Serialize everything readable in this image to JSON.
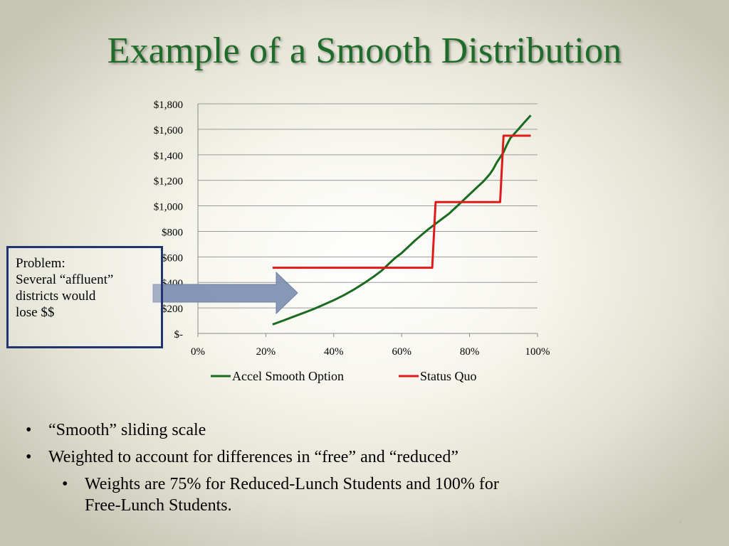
{
  "slide": {
    "title": "Example of a Smooth Distribution",
    "callout": [
      "Problem:",
      "Several “affluent”",
      "districts would",
      "lose $$"
    ],
    "bullets": [
      {
        "level": 1,
        "text": "“Smooth” sliding scale"
      },
      {
        "level": 1,
        "text": "Weighted to account for differences in “free” and “reduced”"
      },
      {
        "level": 2,
        "text": "Weights are 75% for Reduced-Lunch Students and 100% for",
        "text2": "Free-Lunch Students."
      }
    ],
    "bullet_glyph": "•",
    "page_number": "4",
    "arrow_icon": "right-arrow-icon",
    "colors": {
      "title": "#1e6b2a",
      "callout_border": "#1f3470",
      "arrow": "#8192b3"
    }
  },
  "chart_data": {
    "type": "line",
    "title": "",
    "xlabel": "",
    "ylabel": "",
    "xlim": [
      0,
      1
    ],
    "ylim": [
      0,
      1800
    ],
    "xticks": [
      0,
      0.2,
      0.4,
      0.6,
      0.8,
      1.0
    ],
    "xtick_labels": [
      "0%",
      "20%",
      "40%",
      "60%",
      "80%",
      "100%"
    ],
    "yticks": [
      0,
      200,
      400,
      600,
      800,
      1000,
      1200,
      1400,
      1600,
      1800
    ],
    "ytick_labels": [
      "$-",
      "$200",
      "$400",
      "$600",
      "$800",
      "$1,000",
      "$1,200",
      "$1,400",
      "$1,600",
      "$1,800"
    ],
    "grid": "horizontal",
    "legend": "bottom",
    "series": [
      {
        "name": "Accel Smooth Option",
        "color": "#1a6b1f",
        "x": [
          0.22,
          0.25,
          0.28,
          0.31,
          0.34,
          0.37,
          0.4,
          0.43,
          0.46,
          0.49,
          0.52,
          0.54,
          0.56,
          0.58,
          0.6,
          0.62,
          0.64,
          0.66,
          0.68,
          0.7,
          0.72,
          0.74,
          0.76,
          0.78,
          0.8,
          0.82,
          0.84,
          0.86,
          0.87,
          0.88,
          0.89,
          0.9,
          0.91,
          0.92,
          0.94,
          0.96,
          0.98
        ],
        "values": [
          70,
          100,
          130,
          160,
          190,
          225,
          260,
          300,
          345,
          395,
          450,
          490,
          540,
          590,
          630,
          680,
          730,
          775,
          820,
          860,
          900,
          940,
          990,
          1040,
          1090,
          1140,
          1190,
          1250,
          1290,
          1340,
          1380,
          1420,
          1480,
          1530,
          1590,
          1650,
          1710
        ]
      },
      {
        "name": "Status Quo",
        "color": "#e01a1a",
        "x": [
          0.22,
          0.69,
          0.7,
          0.89,
          0.9,
          0.98
        ],
        "values": [
          515,
          515,
          1030,
          1030,
          1550,
          1550
        ]
      }
    ]
  }
}
